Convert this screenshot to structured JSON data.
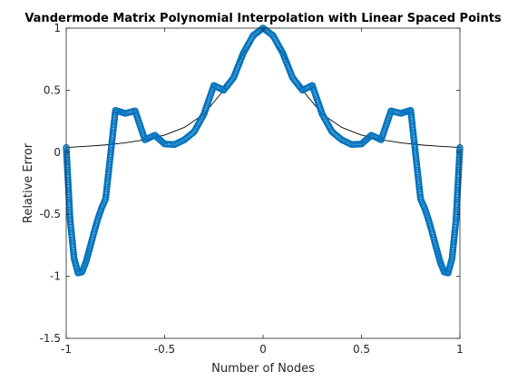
{
  "chart_data": {
    "type": "line",
    "title": "Vandermode Matrix Polynomial Interpolation with Linear Spaced Points",
    "xlabel": "Number of Nodes",
    "ylabel": "Relative Error",
    "xlim": [
      -1,
      1
    ],
    "ylim": [
      -1.5,
      1
    ],
    "xticks": [
      -1,
      -0.5,
      0,
      0.5,
      1
    ],
    "xtick_labels": [
      "-1",
      "-0.5",
      "0",
      "0.5",
      "1"
    ],
    "yticks": [
      -1.5,
      -1,
      -0.5,
      0,
      0.5,
      1
    ],
    "ytick_labels": [
      "-1.5",
      "-1",
      "-0.5",
      "0",
      "0.5",
      "1"
    ],
    "grid": false,
    "colors": {
      "function": "#000000",
      "interpolant": "#0072BD"
    },
    "series": [
      {
        "style": "line",
        "function": "1/(1+25x^2)",
        "x": [
          -1.0,
          -0.9,
          -0.8,
          -0.7,
          -0.6,
          -0.5,
          -0.4,
          -0.3,
          -0.2,
          -0.1,
          0.0,
          0.1,
          0.2,
          0.3,
          0.4,
          0.5,
          0.6,
          0.7,
          0.8,
          0.9,
          1.0
        ],
        "y": [
          0.0385,
          0.0471,
          0.0588,
          0.0755,
          0.1,
          0.1379,
          0.2,
          0.3077,
          0.5,
          0.8,
          1.0,
          0.8,
          0.5,
          0.3077,
          0.2,
          0.1379,
          0.1,
          0.0755,
          0.0588,
          0.0471,
          0.0385
        ]
      },
      {
        "style": "markers",
        "marker": "open-circle",
        "interpolation_nodes": [
          -1.0,
          -0.8,
          -0.6,
          -0.4,
          -0.2,
          0.0,
          0.2,
          0.4,
          0.6,
          0.8,
          1.0
        ],
        "x": [
          -1.0,
          -0.98,
          -0.96,
          -0.94,
          -0.92,
          -0.9,
          -0.88,
          -0.86,
          -0.84,
          -0.82,
          -0.8,
          -0.75,
          -0.7,
          -0.65,
          -0.6,
          -0.55,
          -0.5,
          -0.45,
          -0.4,
          -0.35,
          -0.3,
          -0.25,
          -0.2,
          -0.15,
          -0.1,
          -0.05,
          0.0,
          0.05,
          0.1,
          0.15,
          0.2,
          0.25,
          0.3,
          0.35,
          0.4,
          0.45,
          0.5,
          0.55,
          0.6,
          0.65,
          0.7,
          0.75,
          0.8,
          0.82,
          0.84,
          0.86,
          0.88,
          0.9,
          0.92,
          0.94,
          0.96,
          0.98,
          1.0
        ],
        "y": [
          0.0385,
          -0.5478,
          -0.8568,
          -0.9733,
          -0.9652,
          -0.8851,
          -0.7717,
          -0.6517,
          -0.5412,
          -0.4483,
          -0.3769,
          0.338,
          0.3132,
          0.3332,
          0.1,
          0.1372,
          0.0663,
          0.062,
          0.1,
          0.165,
          0.3077,
          0.5384,
          0.5,
          0.5994,
          0.8,
          0.9412,
          1.0,
          0.9412,
          0.8,
          0.5994,
          0.5,
          0.5384,
          0.3077,
          0.165,
          0.1,
          0.062,
          0.0663,
          0.1372,
          0.1,
          0.3332,
          0.3132,
          0.338,
          -0.3769,
          -0.4483,
          -0.5412,
          -0.6517,
          -0.7717,
          -0.8851,
          -0.9652,
          -0.9733,
          -0.8568,
          -0.5478,
          0.0385
        ]
      }
    ]
  }
}
